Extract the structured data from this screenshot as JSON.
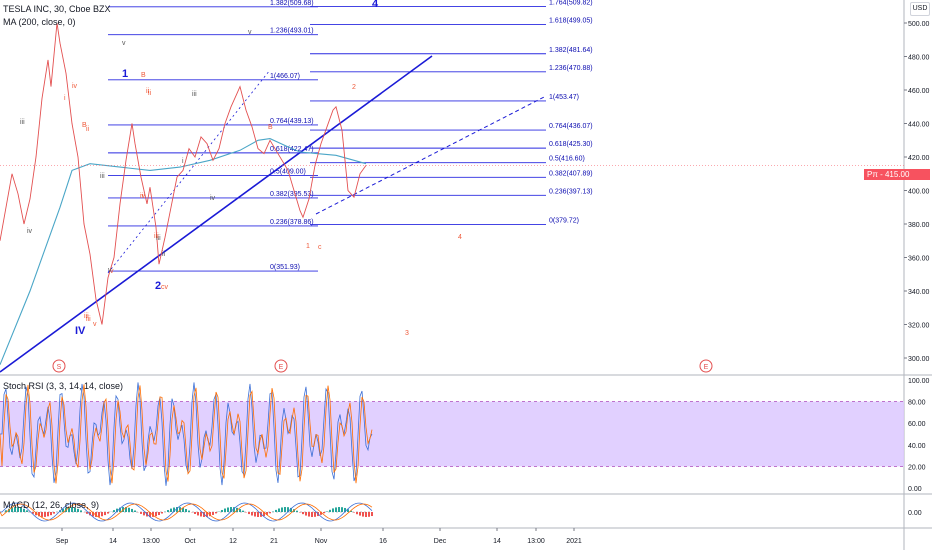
{
  "header": {
    "symbol_title": "TESLA INC, 30, Cboe BZX",
    "ma_label": "MA (200, close, 0)",
    "stoch_label": "Stoch RSI (3, 3, 14, 14, close)",
    "macd_label": "MACD (12, 26, close, 9)"
  },
  "price_axis": {
    "currency_button": "USD",
    "last_price_tag": "Pπ - 415.00",
    "last_price": 415.0
  },
  "colors": {
    "fib_line": "#2929e0",
    "fib_text": "#0b0bb0",
    "trend_line": "#1a1ad6",
    "price_line": "#e35050",
    "ma_line": "#4aa6c7",
    "wave_red": "#ef5a3a",
    "wave_green": "#555555",
    "stoch_band": "#dcc8ff",
    "stoch_k": "#3b6fd6",
    "stoch_d": "#ff6d00",
    "macd_hist_up": "#26a69a",
    "macd_hist_down": "#ef5350",
    "event_marker": "#e35050"
  },
  "chart_data": {
    "type": "line",
    "title": "TESLA INC, 30, Cboe BZX",
    "ylabel": "USD",
    "ylim": [
      288,
      520
    ],
    "x_ticks": [
      "Sep",
      "14",
      "13:00",
      "Oct",
      "12",
      "21",
      "Nov",
      "16",
      "Dec",
      "14",
      "13:00",
      "2021"
    ],
    "y_ticks": [
      300,
      320,
      340,
      360,
      380,
      400,
      420,
      440,
      460,
      480,
      500
    ],
    "price_series": [
      [
        0,
        370
      ],
      [
        2,
        390
      ],
      [
        4,
        410
      ],
      [
        6,
        398
      ],
      [
        8,
        380
      ],
      [
        10,
        395
      ],
      [
        12,
        420
      ],
      [
        14,
        455
      ],
      [
        16,
        478
      ],
      [
        17,
        462
      ],
      [
        19,
        500
      ],
      [
        20,
        488
      ],
      [
        22,
        470
      ],
      [
        24,
        440
      ],
      [
        26,
        420
      ],
      [
        27,
        400
      ],
      [
        28,
        380
      ],
      [
        30,
        362
      ],
      [
        32,
        335
      ],
      [
        34,
        320
      ],
      [
        36,
        348
      ],
      [
        38,
        360
      ],
      [
        40,
        392
      ],
      [
        42,
        418
      ],
      [
        44,
        440
      ],
      [
        45,
        428
      ],
      [
        47,
        408
      ],
      [
        49,
        392
      ],
      [
        50,
        402
      ],
      [
        52,
        378
      ],
      [
        53,
        356
      ],
      [
        55,
        372
      ],
      [
        57,
        390
      ],
      [
        59,
        408
      ],
      [
        61,
        412
      ],
      [
        63,
        425
      ],
      [
        65,
        420
      ],
      [
        67,
        432
      ],
      [
        69,
        428
      ],
      [
        71,
        418
      ],
      [
        73,
        425
      ],
      [
        75,
        440
      ],
      [
        77,
        450
      ],
      [
        79,
        458
      ],
      [
        80,
        462
      ],
      [
        82,
        448
      ],
      [
        84,
        438
      ],
      [
        86,
        425
      ],
      [
        88,
        422
      ],
      [
        90,
        430
      ],
      [
        92,
        424
      ],
      [
        94,
        418
      ],
      [
        96,
        412
      ],
      [
        98,
        400
      ],
      [
        100,
        388
      ],
      [
        101,
        384
      ],
      [
        103,
        395
      ],
      [
        105,
        415
      ],
      [
        107,
        428
      ],
      [
        109,
        438
      ],
      [
        111,
        448
      ],
      [
        112,
        450
      ],
      [
        114,
        436
      ],
      [
        116,
        400
      ],
      [
        118,
        396
      ],
      [
        120,
        410
      ],
      [
        122,
        415
      ]
    ],
    "ma200_series": [
      [
        0,
        296
      ],
      [
        10,
        340
      ],
      [
        20,
        390
      ],
      [
        24,
        412
      ],
      [
        30,
        416
      ],
      [
        40,
        414
      ],
      [
        50,
        412
      ],
      [
        60,
        414
      ],
      [
        70,
        418
      ],
      [
        80,
        424
      ],
      [
        86,
        430
      ],
      [
        90,
        431
      ],
      [
        96,
        426
      ],
      [
        100,
        423
      ],
      [
        106,
        422
      ],
      [
        112,
        421
      ],
      [
        118,
        418
      ],
      [
        122,
        416
      ]
    ],
    "fib_set_1": {
      "levels": [
        {
          "label": "1.382(509.68)",
          "value": 509.68
        },
        {
          "label": "1.236(493.01)",
          "value": 493.01
        },
        {
          "label": "1(466.07)",
          "value": 466.07
        },
        {
          "label": "0.764(439.13)",
          "value": 439.13
        },
        {
          "label": "0.618(422.47)",
          "value": 422.47
        },
        {
          "label": "0.5(409.00)",
          "value": 409.0
        },
        {
          "label": "0.382(395.53)",
          "value": 395.53
        },
        {
          "label": "0.236(378.86)",
          "value": 378.86
        },
        {
          "label": "0(351.93)",
          "value": 351.93
        }
      ]
    },
    "fib_set_2": {
      "levels": [
        {
          "label": "1.764(509.82)",
          "value": 509.82
        },
        {
          "label": "1.618(499.05)",
          "value": 499.05
        },
        {
          "label": "1.382(481.64)",
          "value": 481.64
        },
        {
          "label": "1.236(470.88)",
          "value": 470.88
        },
        {
          "label": "1(453.47)",
          "value": 453.47
        },
        {
          "label": "0.764(436.07)",
          "value": 436.07
        },
        {
          "label": "0.618(425.30)",
          "value": 425.3
        },
        {
          "label": "0.5(416.60)",
          "value": 416.6
        },
        {
          "label": "0.382(407.89)",
          "value": 407.89
        },
        {
          "label": "0.236(397.13)",
          "value": 397.13
        },
        {
          "label": "0(379.72)",
          "value": 379.72
        }
      ]
    },
    "wave_labels": [
      {
        "text": "iii",
        "c": "green"
      },
      {
        "text": "iv",
        "c": "red"
      },
      {
        "text": "i",
        "c": "red"
      },
      {
        "text": "iv",
        "c": "green"
      },
      {
        "text": "B",
        "c": "red"
      },
      {
        "text": "ii",
        "c": "red"
      },
      {
        "text": "iii",
        "c": "green"
      },
      {
        "text": "iii",
        "c": "red"
      },
      {
        "text": "v",
        "c": "red"
      },
      {
        "text": "ii",
        "c": "red"
      },
      {
        "text": "iv",
        "c": "red"
      },
      {
        "text": "i",
        "c": "green"
      },
      {
        "text": "v",
        "c": "green"
      },
      {
        "text": "v",
        "c": "red"
      },
      {
        "text": "IV",
        "c": "blue"
      },
      {
        "text": "1",
        "c": "blue"
      },
      {
        "text": "B",
        "c": "red"
      },
      {
        "text": "ii",
        "c": "red"
      },
      {
        "text": "iii",
        "c": "green"
      },
      {
        "text": "iii",
        "c": "green"
      },
      {
        "text": "i",
        "c": "red"
      },
      {
        "text": "iv",
        "c": "green"
      },
      {
        "text": "iii",
        "c": "red"
      },
      {
        "text": "ii",
        "c": "green"
      },
      {
        "text": "v",
        "c": "green"
      },
      {
        "text": "2",
        "c": "blue"
      },
      {
        "text": "cv",
        "c": "red"
      },
      {
        "text": "v",
        "c": "green"
      },
      {
        "text": "B",
        "c": "red"
      },
      {
        "text": "1",
        "c": "red"
      },
      {
        "text": "c",
        "c": "red"
      },
      {
        "text": "2",
        "c": "red"
      },
      {
        "text": "3",
        "c": "red"
      },
      {
        "text": "4",
        "c": "red"
      },
      {
        "text": "4",
        "c": "blue"
      },
      {
        "text": "iii",
        "c": "red"
      }
    ],
    "event_markers": [
      "S",
      "E",
      "E"
    ],
    "stoch_rsi": {
      "ylim": [
        0,
        100
      ],
      "y_ticks": [
        0,
        20,
        40,
        60,
        80,
        100
      ],
      "band": [
        20,
        80
      ]
    },
    "macd": {
      "y_ticks": [
        0.0
      ]
    }
  }
}
